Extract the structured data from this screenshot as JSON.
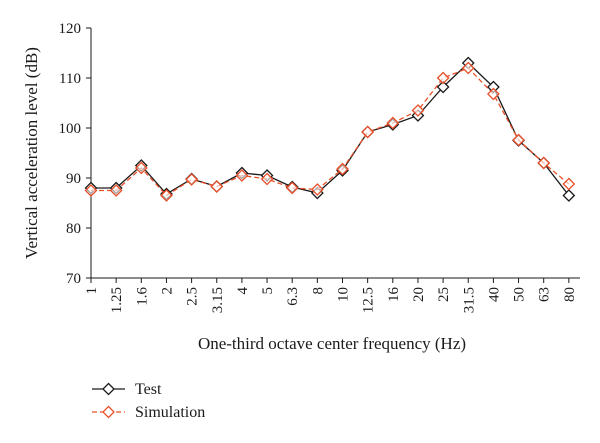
{
  "chart_data": {
    "type": "line",
    "title": "",
    "xlabel": "One-third octave center frequency (Hz)",
    "ylabel": "Vertical acceleration level (dB)",
    "ylim": [
      70,
      120
    ],
    "yticks": [
      70,
      80,
      90,
      100,
      110,
      120
    ],
    "grid": false,
    "legend_position": "bottom-left",
    "categories": [
      "1",
      "1.25",
      "1.6",
      "2",
      "2.5",
      "3.15",
      "4",
      "5",
      "6.3",
      "8",
      "10",
      "12.5",
      "16",
      "20",
      "25",
      "31.5",
      "40",
      "50",
      "63",
      "80"
    ],
    "series": [
      {
        "name": "Test",
        "color": "#1a1a1a",
        "dashed": false,
        "marker": "diamond",
        "values": [
          88.0,
          88.0,
          92.5,
          86.8,
          89.8,
          88.3,
          91.0,
          90.5,
          88.2,
          87.0,
          91.5,
          99.2,
          100.7,
          102.5,
          108.2,
          113.0,
          108.2,
          97.5,
          93.0,
          86.5
        ]
      },
      {
        "name": "Simulation",
        "color": "#e8502a",
        "dashed": true,
        "marker": "diamond",
        "values": [
          87.5,
          87.5,
          92.0,
          86.5,
          89.7,
          88.3,
          90.5,
          89.8,
          88.0,
          87.7,
          91.8,
          99.2,
          101.0,
          103.5,
          110.0,
          112.0,
          106.8,
          97.6,
          93.0,
          88.8
        ]
      }
    ]
  }
}
